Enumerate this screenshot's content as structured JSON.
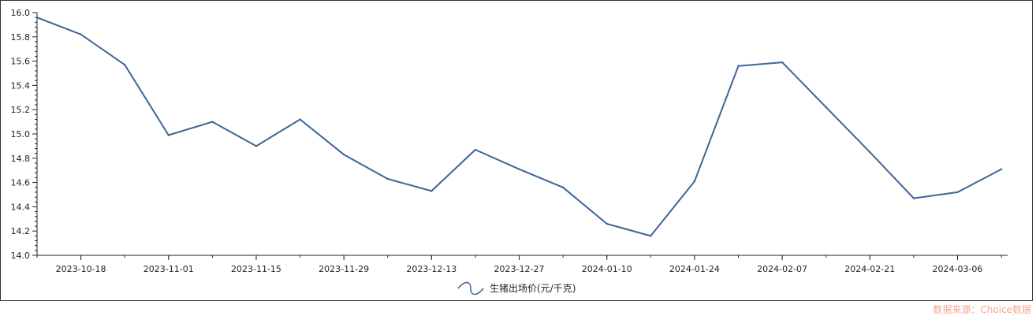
{
  "chart_data": {
    "type": "line",
    "title": "",
    "xlabel": "",
    "ylabel": "",
    "ylim": [
      14.0,
      16.0
    ],
    "yticks": [
      "14.0",
      "14.2",
      "14.4",
      "14.6",
      "14.8",
      "15.0",
      "15.2",
      "15.4",
      "15.6",
      "15.8",
      "16.0"
    ],
    "xtick_labels": [
      "2023-10-18",
      "2023-11-01",
      "2023-11-15",
      "2023-11-29",
      "2023-12-13",
      "2023-12-27",
      "2024-01-10",
      "2024-01-24",
      "2024-02-07",
      "2024-02-21",
      "2024-03-06"
    ],
    "x": [
      "2023-10-11",
      "2023-10-18",
      "2023-10-25",
      "2023-11-01",
      "2023-11-08",
      "2023-11-15",
      "2023-11-22",
      "2023-11-29",
      "2023-12-06",
      "2023-12-13",
      "2023-12-20",
      "2023-12-27",
      "2024-01-03",
      "2024-01-10",
      "2024-01-17",
      "2024-01-24",
      "2024-01-31",
      "2024-02-07",
      "2024-02-14",
      "2024-02-21",
      "2024-02-28",
      "2024-03-06",
      "2024-03-13"
    ],
    "series": [
      {
        "name": "生猪出场价(元/千克)",
        "color": "#3d6596",
        "values": [
          15.96,
          15.82,
          15.57,
          14.99,
          15.1,
          14.9,
          15.12,
          14.83,
          14.63,
          14.53,
          14.87,
          14.71,
          14.56,
          14.26,
          14.16,
          14.61,
          15.56,
          15.59,
          15.22,
          14.85,
          14.47,
          14.52,
          14.71
        ]
      }
    ],
    "legend_position": "bottom-center",
    "grid": false
  },
  "source_note": "数据来源：Choice数据"
}
